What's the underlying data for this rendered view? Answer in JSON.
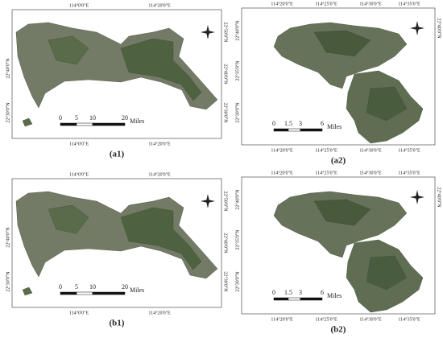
{
  "panels": [
    {
      "caption": "(a1)",
      "top_labels": [
        "114°0'0\"E",
        "114°20'0\"E"
      ],
      "bottom_labels": [
        "114°0'0\"E",
        "114°20'0\"E"
      ],
      "left_labels": [
        "22°40'0\"N",
        "22°30'0\"N"
      ],
      "right_labels": [
        "22°50'0\"N",
        "22°40'0\"N",
        "22°30'0\"N"
      ],
      "scale_labels": [
        "0",
        "5",
        "10",
        "20"
      ],
      "scale_unit": "Miles"
    },
    {
      "caption": "(a2)",
      "top_labels": [
        "114°20'0\"E",
        "114°25'0\"E",
        "114°30'0\"E",
        "114°35'0\"E"
      ],
      "bottom_labels": [
        "114°20'0\"E",
        "114°25'0\"E",
        "114°30'0\"E",
        "114°35'0\"E"
      ],
      "left_labels": [
        "22°40'0\"N",
        "22°35'0\"N",
        "22°30'0\"N"
      ],
      "right_labels": [
        "22°40'0\"N"
      ],
      "scale_labels": [
        "0",
        "1.5",
        "3",
        "6"
      ],
      "scale_unit": "Miles"
    },
    {
      "caption": "(b1)",
      "top_labels": [
        "114°0'0\"E",
        "114°20'0\"E"
      ],
      "bottom_labels": [
        "114°0'0\"E",
        "114°20'0\"E"
      ],
      "left_labels": [
        "22°40'0\"N",
        "22°30'0\"N"
      ],
      "right_labels": [
        "22°50'0\"N",
        "22°40'0\"N",
        "22°30'0\"N"
      ],
      "scale_labels": [
        "0",
        "5",
        "10",
        "20"
      ],
      "scale_unit": "Miles"
    },
    {
      "caption": "(b2)",
      "top_labels": [
        "114°20'0\"E",
        "114°25'0\"E",
        "114°30'0\"E",
        "114°35'0\"E"
      ],
      "bottom_labels": [
        "114°20'0\"E",
        "114°25'0\"E",
        "114°30'0\"E",
        "114°35'0\"E"
      ],
      "left_labels": [
        "22°40'0\"N",
        "22°35'0\"N",
        "22°30'0\"N"
      ],
      "right_labels": [
        "22°40'0\"N"
      ],
      "scale_labels": [
        "0",
        "1.5",
        "3",
        "6"
      ],
      "scale_unit": "Miles"
    }
  ]
}
